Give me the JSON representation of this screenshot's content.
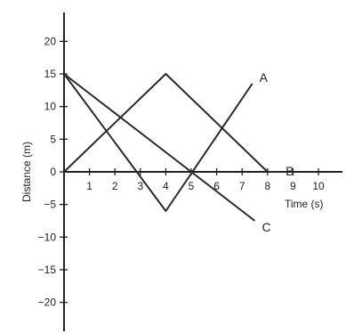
{
  "chart_data": {
    "type": "line",
    "xlabel": "Time (s)",
    "ylabel": "Distance (m)",
    "xlim": [
      0,
      10.5
    ],
    "ylim": [
      -22,
      23
    ],
    "x_ticks": [
      1,
      2,
      3,
      4,
      5,
      6,
      7,
      8,
      9,
      10
    ],
    "y_ticks": [
      20,
      15,
      10,
      5,
      0,
      -5,
      -10,
      -15,
      -20
    ],
    "series": [
      {
        "name": "A",
        "points": [
          [
            0,
            15
          ],
          [
            4,
            -6
          ],
          [
            7.4,
            13.5
          ]
        ]
      },
      {
        "name": "B",
        "points": [
          [
            0,
            0
          ],
          [
            4,
            15
          ],
          [
            8,
            0
          ],
          [
            8.5,
            0
          ]
        ]
      },
      {
        "name": "C",
        "points": [
          [
            0,
            15
          ],
          [
            5,
            0
          ],
          [
            7.5,
            -7.5
          ]
        ]
      }
    ],
    "grid": false,
    "legend": "labels at line ends"
  }
}
